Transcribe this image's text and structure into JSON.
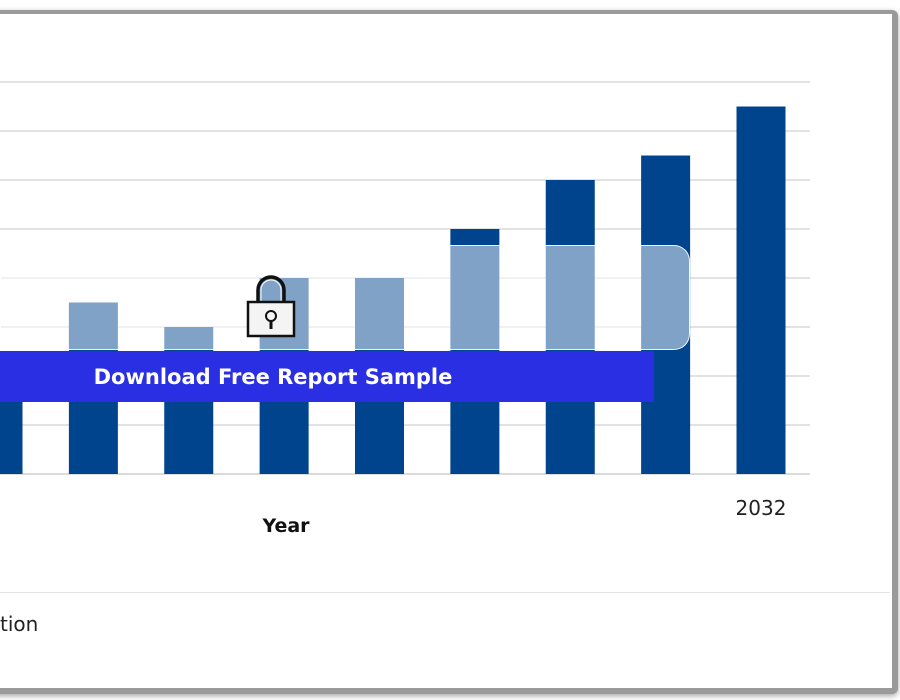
{
  "chart_data": {
    "type": "bar",
    "categories": [
      "",
      "",
      "",
      "",
      "",
      "",
      "",
      "",
      "2032"
    ],
    "values": [
      null,
      3.5,
      3.0,
      4.0,
      4.0,
      5.0,
      6.0,
      6.5,
      7.5
    ],
    "xlabel": "Year",
    "ylabel": "",
    "ylim": [
      0,
      8
    ],
    "bar_color": "#00448e",
    "grid": true
  },
  "overlay": {
    "download_label": "Download Free Report Sample",
    "lock_icon": "lock-icon"
  },
  "footer": {
    "text": "tion"
  }
}
